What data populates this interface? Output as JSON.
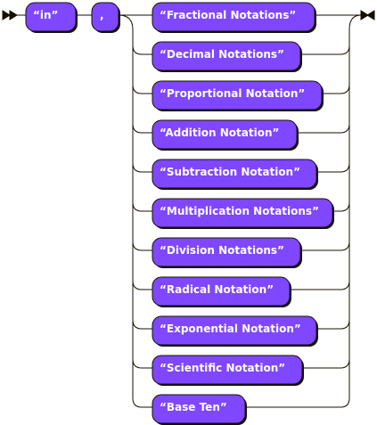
{
  "diagram": {
    "type": "railroad",
    "colors": {
      "terminal_fill": "#7f47ff",
      "terminal_text": "#ffffff",
      "line": "#141000"
    },
    "sequence": [
      {
        "label": "“in”"
      },
      {
        "label": ","
      }
    ],
    "choices": [
      {
        "label": "“Fractional Notations”"
      },
      {
        "label": "“Decimal Notations”"
      },
      {
        "label": "“Proportional Notation”"
      },
      {
        "label": "“Addition Notation”"
      },
      {
        "label": "“Subtraction Notation”"
      },
      {
        "label": "“Multiplication Notations”"
      },
      {
        "label": "“Division Notations”"
      },
      {
        "label": "“Radical Notation”"
      },
      {
        "label": "“Exponential Notation”"
      },
      {
        "label": "“Scientific Notation”"
      },
      {
        "label": "“Base Ten”"
      }
    ]
  }
}
